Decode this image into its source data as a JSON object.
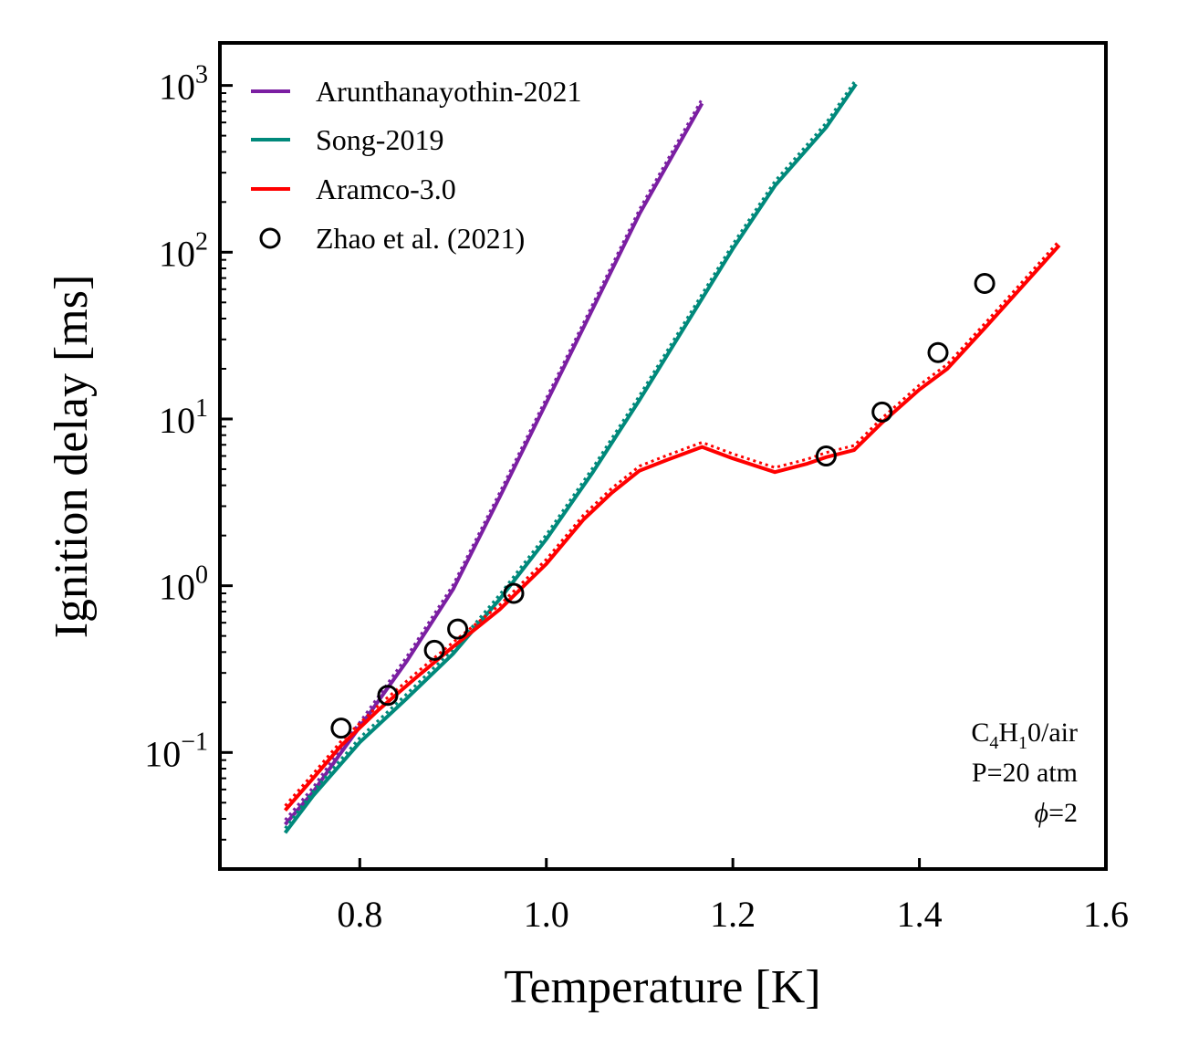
{
  "chart_data": {
    "type": "line",
    "xlabel": "Temperature [K]",
    "ylabel": "Ignition delay [ms]",
    "xlim": [
      0.65,
      1.6
    ],
    "ylim": [
      0.02,
      1800
    ],
    "yscale": "log",
    "grid": false,
    "legend_position": "top-left",
    "x_ticks": [
      0.8,
      1.0,
      1.2,
      1.4,
      1.6
    ],
    "x_tick_labels": [
      "0.8",
      "1.0",
      "1.2",
      "1.4",
      "1.6"
    ],
    "y_ticks": [
      {
        "value": 0.1,
        "base": "10",
        "exp": "−1"
      },
      {
        "value": 1,
        "base": "10",
        "exp": "0"
      },
      {
        "value": 10,
        "base": "10",
        "exp": "1"
      },
      {
        "value": 100,
        "base": "10",
        "exp": "2"
      },
      {
        "value": 1000,
        "base": "10",
        "exp": "3"
      }
    ],
    "annotation": {
      "line1": {
        "pre": "C",
        "sub1": "4",
        "mid": "H",
        "sub2": "1",
        "post": "0/air"
      },
      "line2": "P=20 atm",
      "line3": {
        "symbol": "ϕ",
        "rest": "=2"
      }
    },
    "series": [
      {
        "name": "Arunthanayothin-2021",
        "kind": "line",
        "color": "#7b1fa2",
        "x": [
          0.72,
          0.75,
          0.78,
          0.81,
          0.85,
          0.9,
          0.95,
          1.0,
          1.05,
          1.1,
          1.167
        ],
        "y": [
          0.037,
          0.058,
          0.1,
          0.17,
          0.35,
          0.95,
          3.4,
          12.5,
          46,
          170,
          780
        ]
      },
      {
        "name": "Song-2019",
        "kind": "line",
        "color": "#00897b",
        "x": [
          0.72,
          0.75,
          0.8,
          0.85,
          0.9,
          0.95,
          1.0,
          1.05,
          1.1,
          1.15,
          1.2,
          1.245,
          1.3,
          1.332
        ],
        "y": [
          0.033,
          0.055,
          0.115,
          0.21,
          0.39,
          0.83,
          1.9,
          4.8,
          13,
          37,
          105,
          250,
          560,
          1020
        ]
      },
      {
        "name": "Aramco-3.0",
        "kind": "line",
        "color": "#ff0000",
        "x": [
          0.72,
          0.75,
          0.78,
          0.82,
          0.86,
          0.9,
          0.95,
          1.0,
          1.04,
          1.07,
          1.1,
          1.13,
          1.167,
          1.2,
          1.245,
          1.28,
          1.3,
          1.33,
          1.36,
          1.4,
          1.43,
          1.47,
          1.55
        ],
        "y": [
          0.045,
          0.07,
          0.11,
          0.18,
          0.28,
          0.43,
          0.72,
          1.35,
          2.5,
          3.6,
          4.9,
          5.7,
          6.8,
          5.8,
          4.8,
          5.4,
          5.9,
          6.5,
          9.5,
          15,
          20,
          35,
          110
        ]
      },
      {
        "name": "Zhao et al. (2021)",
        "kind": "marker",
        "color": "#000000",
        "x": [
          0.78,
          0.83,
          0.88,
          0.905,
          0.965,
          1.3,
          1.36,
          1.42,
          1.47
        ],
        "y": [
          0.14,
          0.22,
          0.41,
          0.55,
          0.9,
          6.0,
          11.0,
          25.0,
          65.0
        ]
      }
    ]
  }
}
